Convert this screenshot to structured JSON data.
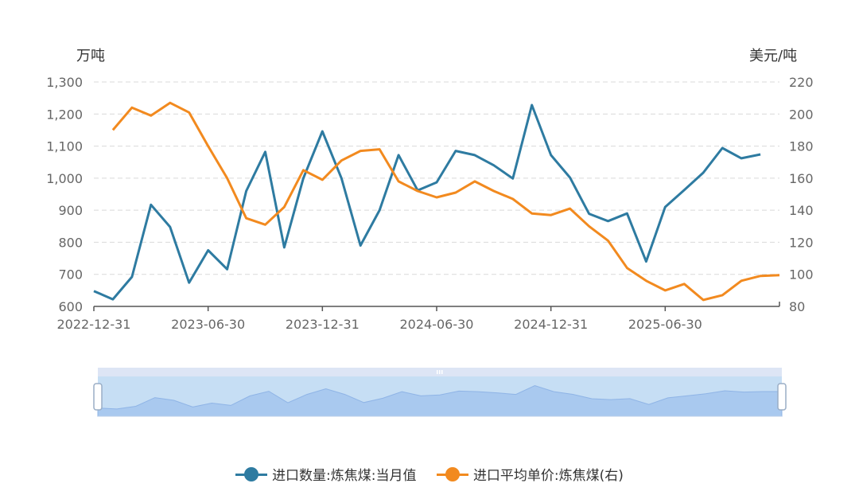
{
  "chart_data": {
    "type": "line",
    "x_tick_labels": [
      "2022-12-31",
      "2023-06-30",
      "2023-12-31",
      "2024-06-30",
      "2024-12-31",
      "2025-06-30"
    ],
    "left_axis": {
      "unit": "万吨",
      "min": 600,
      "max": 1300,
      "ticks": [
        "600",
        "700",
        "800",
        "900",
        "1,000",
        "1,100",
        "1,200",
        "1,300"
      ]
    },
    "right_axis": {
      "unit": "美元/吨",
      "min": 80,
      "max": 220,
      "ticks": [
        "80",
        "100",
        "120",
        "140",
        "160",
        "180",
        "200",
        "220"
      ]
    },
    "grid": true,
    "legend_position": "bottom",
    "x": [
      "2022-12",
      "2023-01",
      "2023-02",
      "2023-03",
      "2023-04",
      "2023-05",
      "2023-06",
      "2023-07",
      "2023-08",
      "2023-09",
      "2023-10",
      "2023-11",
      "2023-12",
      "2024-01",
      "2024-02",
      "2024-03",
      "2024-04",
      "2024-05",
      "2024-06",
      "2024-07",
      "2024-08",
      "2024-09",
      "2024-10",
      "2024-11",
      "2024-12",
      "2025-01",
      "2025-02",
      "2025-03",
      "2025-04",
      "2025-05",
      "2025-06",
      "2025-07",
      "2025-08",
      "2025-09",
      "2025-10",
      "2025-11",
      "2025-12"
    ],
    "series": [
      {
        "name": "进口数量:炼焦煤:当月值",
        "axis": "left",
        "color": "#2e7ba1",
        "values": [
          648,
          622,
          692,
          917,
          848,
          674,
          775,
          716,
          960,
          1082,
          784,
          1000,
          1146,
          1000,
          790,
          900,
          1072,
          962,
          987,
          1085,
          1072,
          1040,
          999,
          1228,
          1072,
          1002,
          889,
          866,
          890,
          740,
          910,
          963,
          1017,
          1094,
          1062,
          1074,
          null
        ]
      },
      {
        "name": "进口平均单价:炼焦煤(右)",
        "axis": "right",
        "color": "#f28a1f",
        "values": [
          null,
          190,
          204,
          199,
          207,
          201,
          180,
          160,
          135,
          131,
          142,
          165,
          159,
          171,
          177,
          178,
          158,
          152,
          148,
          151,
          158,
          152,
          147,
          138,
          137,
          141,
          130,
          121,
          104,
          96,
          90,
          94,
          84,
          87,
          96,
          99,
          99.5
        ]
      }
    ]
  }
}
